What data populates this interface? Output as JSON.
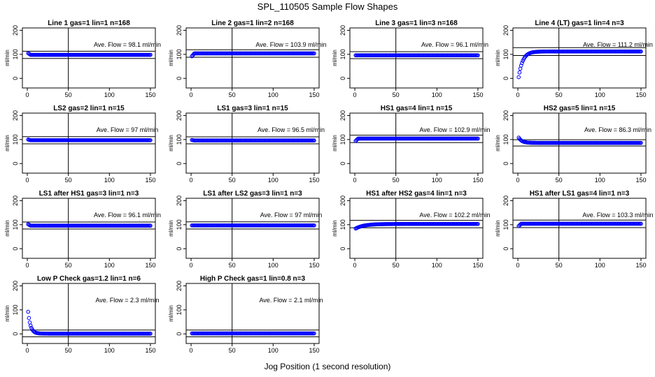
{
  "title": "SPL_110505  Sample Flow Shapes",
  "xlabel": "Jog Position (1 second resolution)",
  "ylabel": "ml/min",
  "ave_prefix": "Ave. Flow = ",
  "ave_unit": "ml/min",
  "colors": {
    "points": "#0000ff",
    "axes": "#000000"
  },
  "chart_data": {
    "type": "scatter",
    "xlim": [
      0,
      150
    ],
    "ylim": [
      0,
      200
    ],
    "x_ticks": [
      0,
      50,
      100,
      150
    ],
    "y_ticks": [
      0,
      100,
      200
    ],
    "vline_x": 50,
    "panels": [
      {
        "title": "Line 1 gas=1 lin=1 n=168",
        "ave": "98.1",
        "ref": [
          83,
          113
        ],
        "shape": "flat",
        "level": 98,
        "start": 105
      },
      {
        "title": "Line 2 gas=1 lin=2 n=168",
        "ave": "103.9",
        "ref": [
          88,
          119
        ],
        "shape": "flat",
        "level": 104,
        "start": 92
      },
      {
        "title": "Line 3 gas=1 lin=3 n=168",
        "ave": "96.1",
        "ref": [
          82,
          111
        ],
        "shape": "flat",
        "level": 96,
        "start": 96
      },
      {
        "title": "Line 4 (LT) gas=1 lin=4 n=3",
        "ave": "111.2",
        "ref": [
          95,
          128
        ],
        "shape": "rise",
        "level": 112,
        "start": 5
      },
      {
        "title": "LS2 gas=2 lin=1 n=15",
        "ave": "97",
        "ref": [
          82,
          112
        ],
        "shape": "flat",
        "level": 97,
        "start": 100
      },
      {
        "title": "LS1 gas=3 lin=1 n=15",
        "ave": "96.5",
        "ref": [
          82,
          111
        ],
        "shape": "flat",
        "level": 96,
        "start": 98
      },
      {
        "title": "HS1 gas=4 lin=1 n=15",
        "ave": "102.9",
        "ref": [
          87,
          118
        ],
        "shape": "flat",
        "level": 104,
        "start": 94
      },
      {
        "title": "HS2 gas=5 lin=1 n=15",
        "ave": "86.3",
        "ref": [
          73,
          99
        ],
        "shape": "fall",
        "level": 86,
        "start": 108
      },
      {
        "title": "LS1 after HS1 gas=3 lin=1 n=3",
        "ave": "96.1",
        "ref": [
          82,
          111
        ],
        "shape": "flat",
        "level": 96,
        "start": 102
      },
      {
        "title": "LS1 after LS2 gas=3 lin=1 n=3",
        "ave": "97",
        "ref": [
          82,
          112
        ],
        "shape": "flat",
        "level": 97,
        "start": 97
      },
      {
        "title": "HS1 after HS2 gas=4 lin=1 n=3",
        "ave": "102.2",
        "ref": [
          87,
          118
        ],
        "shape": "rise-slow",
        "level": 103,
        "start": 84
      },
      {
        "title": "HS1 after LS1 gas=4 lin=1 n=3",
        "ave": "103.3",
        "ref": [
          88,
          119
        ],
        "shape": "flat",
        "level": 104,
        "start": 94
      },
      {
        "title": "Low P Check gas=1.2 lin=1 n=6",
        "ave": "2.3",
        "ref": [
          -12,
          16
        ],
        "shape": "decay",
        "level": 1,
        "start": 92
      },
      {
        "title": "High P Check gas=1 lin=0.8 n=3",
        "ave": "2.1",
        "ref": [
          -12,
          16
        ],
        "shape": "flat",
        "level": 2,
        "start": 2
      }
    ]
  }
}
